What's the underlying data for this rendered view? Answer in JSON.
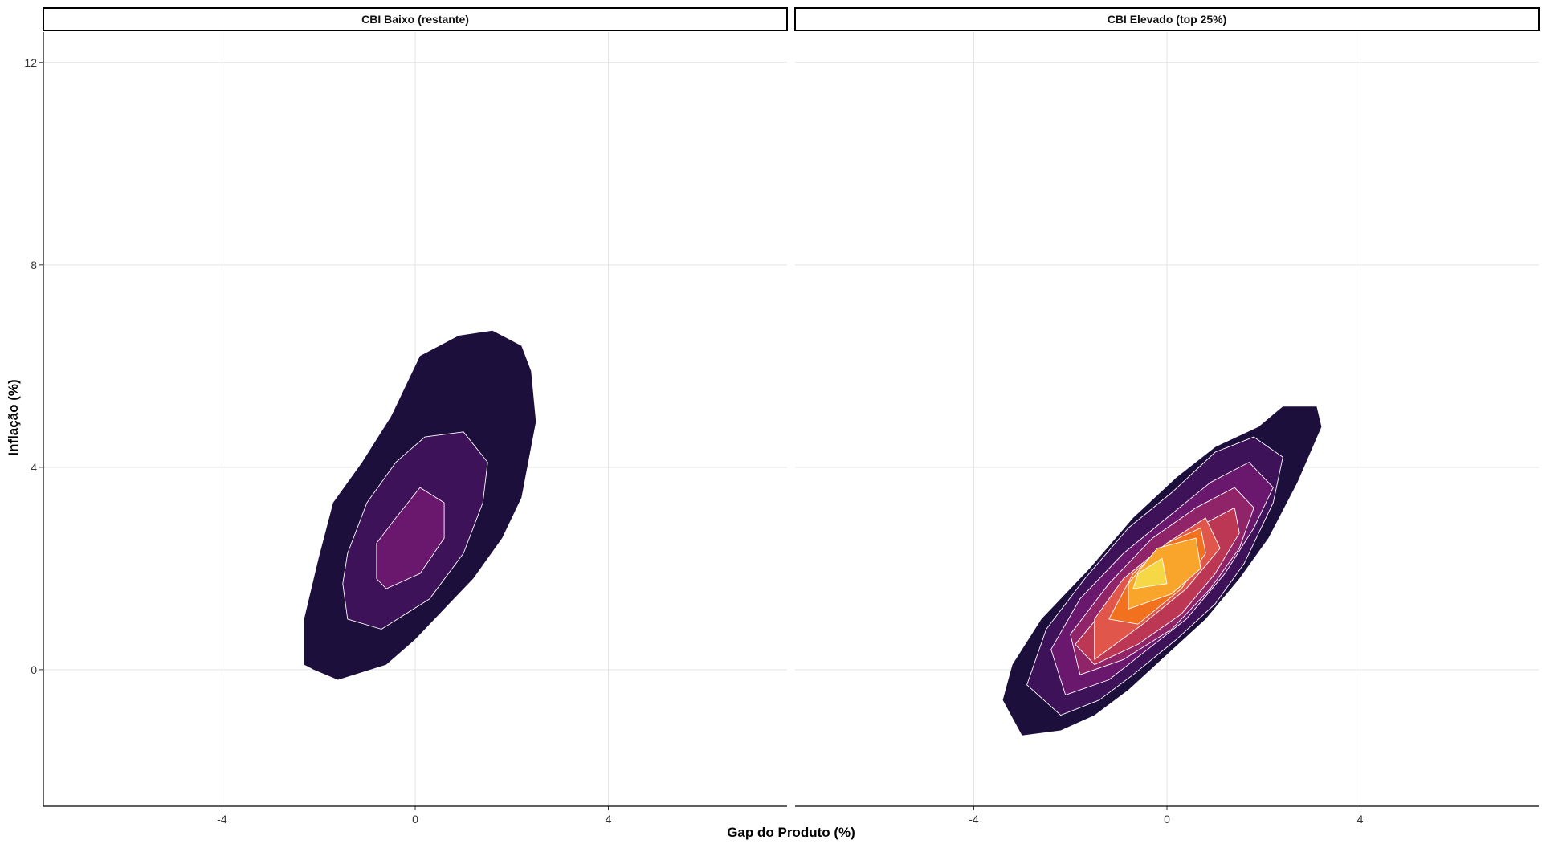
{
  "chart_data": {
    "type": "density-contour",
    "xlabel": "Gap do Produto (%)",
    "ylabel": "Inflação (%)",
    "xlim": [
      -7.7,
      7.7
    ],
    "ylim": [
      -2.7,
      12.6
    ],
    "x_ticks": [
      -4,
      0,
      4
    ],
    "y_ticks": [
      0,
      4,
      8,
      12
    ],
    "grid": true,
    "palette": [
      "#1c0f3c",
      "#3e1259",
      "#6a176e",
      "#8f2469",
      "#bc3754",
      "#e1564a",
      "#f1711f",
      "#f9a42b",
      "#f6d746"
    ],
    "contour_line_color": "#ffffff",
    "panels": [
      {
        "title": "CBI Baixo (restante)",
        "levels": [
          {
            "level": 1,
            "polygon": [
              [
                -1.6,
                -0.2
              ],
              [
                -0.6,
                0.1
              ],
              [
                0.0,
                0.6
              ],
              [
                0.6,
                1.2
              ],
              [
                1.2,
                1.8
              ],
              [
                1.8,
                2.6
              ],
              [
                2.2,
                3.4
              ],
              [
                2.5,
                4.9
              ],
              [
                2.4,
                5.9
              ],
              [
                2.2,
                6.4
              ],
              [
                1.6,
                6.7
              ],
              [
                0.9,
                6.6
              ],
              [
                0.1,
                6.2
              ],
              [
                -0.5,
                5.0
              ],
              [
                -1.1,
                4.1
              ],
              [
                -1.7,
                3.3
              ],
              [
                -2.0,
                2.2
              ],
              [
                -2.3,
                1.0
              ],
              [
                -2.3,
                0.1
              ],
              [
                -2.1,
                0.0
              ]
            ]
          },
          {
            "level": 2,
            "polygon": [
              [
                -0.7,
                0.8
              ],
              [
                0.3,
                1.4
              ],
              [
                1.0,
                2.3
              ],
              [
                1.4,
                3.3
              ],
              [
                1.5,
                4.1
              ],
              [
                1.0,
                4.7
              ],
              [
                0.2,
                4.6
              ],
              [
                -0.4,
                4.1
              ],
              [
                -1.0,
                3.3
              ],
              [
                -1.4,
                2.3
              ],
              [
                -1.5,
                1.7
              ],
              [
                -1.4,
                1.0
              ]
            ]
          },
          {
            "level": 3,
            "polygon": [
              [
                -0.6,
                1.6
              ],
              [
                0.1,
                1.9
              ],
              [
                0.6,
                2.6
              ],
              [
                0.6,
                3.3
              ],
              [
                0.1,
                3.6
              ],
              [
                -0.4,
                3.0
              ],
              [
                -0.8,
                2.5
              ],
              [
                -0.8,
                1.8
              ]
            ]
          }
        ]
      },
      {
        "title": "CBI Elevado (top 25%)",
        "levels": [
          {
            "level": 1,
            "polygon": [
              [
                -3.0,
                -1.3
              ],
              [
                -2.2,
                -1.2
              ],
              [
                -1.5,
                -0.9
              ],
              [
                -0.8,
                -0.4
              ],
              [
                0.0,
                0.3
              ],
              [
                0.8,
                1.0
              ],
              [
                1.5,
                1.8
              ],
              [
                2.1,
                2.6
              ],
              [
                2.7,
                3.7
              ],
              [
                3.2,
                4.8
              ],
              [
                3.1,
                5.2
              ],
              [
                2.4,
                5.2
              ],
              [
                1.9,
                4.8
              ],
              [
                1.0,
                4.4
              ],
              [
                0.2,
                3.8
              ],
              [
                -0.7,
                3.0
              ],
              [
                -1.6,
                2.0
              ],
              [
                -2.6,
                1.0
              ],
              [
                -3.2,
                0.1
              ],
              [
                -3.4,
                -0.6
              ]
            ]
          },
          {
            "level": 2,
            "polygon": [
              [
                -2.2,
                -0.9
              ],
              [
                -1.4,
                -0.6
              ],
              [
                -0.7,
                -0.1
              ],
              [
                0.2,
                0.6
              ],
              [
                1.0,
                1.3
              ],
              [
                1.6,
                2.1
              ],
              [
                2.2,
                3.3
              ],
              [
                2.4,
                4.2
              ],
              [
                1.8,
                4.6
              ],
              [
                1.0,
                4.3
              ],
              [
                0.1,
                3.5
              ],
              [
                -0.8,
                2.8
              ],
              [
                -1.7,
                1.8
              ],
              [
                -2.5,
                0.8
              ],
              [
                -2.9,
                -0.3
              ]
            ]
          },
          {
            "level": 3,
            "polygon": [
              [
                -2.1,
                -0.5
              ],
              [
                -1.2,
                -0.2
              ],
              [
                -0.4,
                0.4
              ],
              [
                0.4,
                1.0
              ],
              [
                1.2,
                1.9
              ],
              [
                1.8,
                2.8
              ],
              [
                2.2,
                3.6
              ],
              [
                1.7,
                4.1
              ],
              [
                0.9,
                3.7
              ],
              [
                0.0,
                3.0
              ],
              [
                -0.9,
                2.3
              ],
              [
                -1.8,
                1.4
              ],
              [
                -2.4,
                0.4
              ]
            ]
          },
          {
            "level": 4,
            "polygon": [
              [
                -1.8,
                -0.1
              ],
              [
                -0.9,
                0.2
              ],
              [
                0.1,
                0.8
              ],
              [
                0.9,
                1.6
              ],
              [
                1.5,
                2.4
              ],
              [
                1.8,
                3.2
              ],
              [
                1.4,
                3.6
              ],
              [
                0.6,
                3.2
              ],
              [
                -0.3,
                2.6
              ],
              [
                -1.2,
                1.7
              ],
              [
                -2.0,
                0.7
              ]
            ]
          },
          {
            "level": 5,
            "polygon": [
              [
                -1.5,
                0.1
              ],
              [
                -0.6,
                0.5
              ],
              [
                0.3,
                1.1
              ],
              [
                1.0,
                1.9
              ],
              [
                1.5,
                2.7
              ],
              [
                1.4,
                3.2
              ],
              [
                0.6,
                2.8
              ],
              [
                -0.3,
                2.2
              ],
              [
                -1.2,
                1.3
              ],
              [
                -1.9,
                0.5
              ]
            ]
          },
          {
            "level": 6,
            "polygon": [
              [
                -1.5,
                0.2
              ],
              [
                -0.5,
                0.9
              ],
              [
                0.4,
                1.6
              ],
              [
                1.1,
                2.4
              ],
              [
                0.8,
                3.0
              ],
              [
                0.0,
                2.5
              ],
              [
                -0.9,
                1.8
              ],
              [
                -1.5,
                1.0
              ]
            ]
          },
          {
            "level": 7,
            "polygon": [
              [
                -1.2,
                1.0
              ],
              [
                -0.6,
                0.9
              ],
              [
                0.3,
                1.6
              ],
              [
                0.8,
                2.3
              ],
              [
                0.7,
                2.8
              ],
              [
                0.0,
                2.5
              ],
              [
                -0.7,
                1.9
              ]
            ]
          },
          {
            "level": 8,
            "polygon": [
              [
                -0.8,
                1.2
              ],
              [
                0.1,
                1.5
              ],
              [
                0.7,
                2.0
              ],
              [
                0.6,
                2.6
              ],
              [
                -0.2,
                2.4
              ],
              [
                -0.8,
                1.7
              ]
            ]
          },
          {
            "level": 9,
            "polygon": [
              [
                -0.7,
                1.6
              ],
              [
                0.0,
                1.7
              ],
              [
                -0.1,
                2.2
              ],
              [
                -0.6,
                1.9
              ]
            ]
          }
        ]
      }
    ]
  }
}
